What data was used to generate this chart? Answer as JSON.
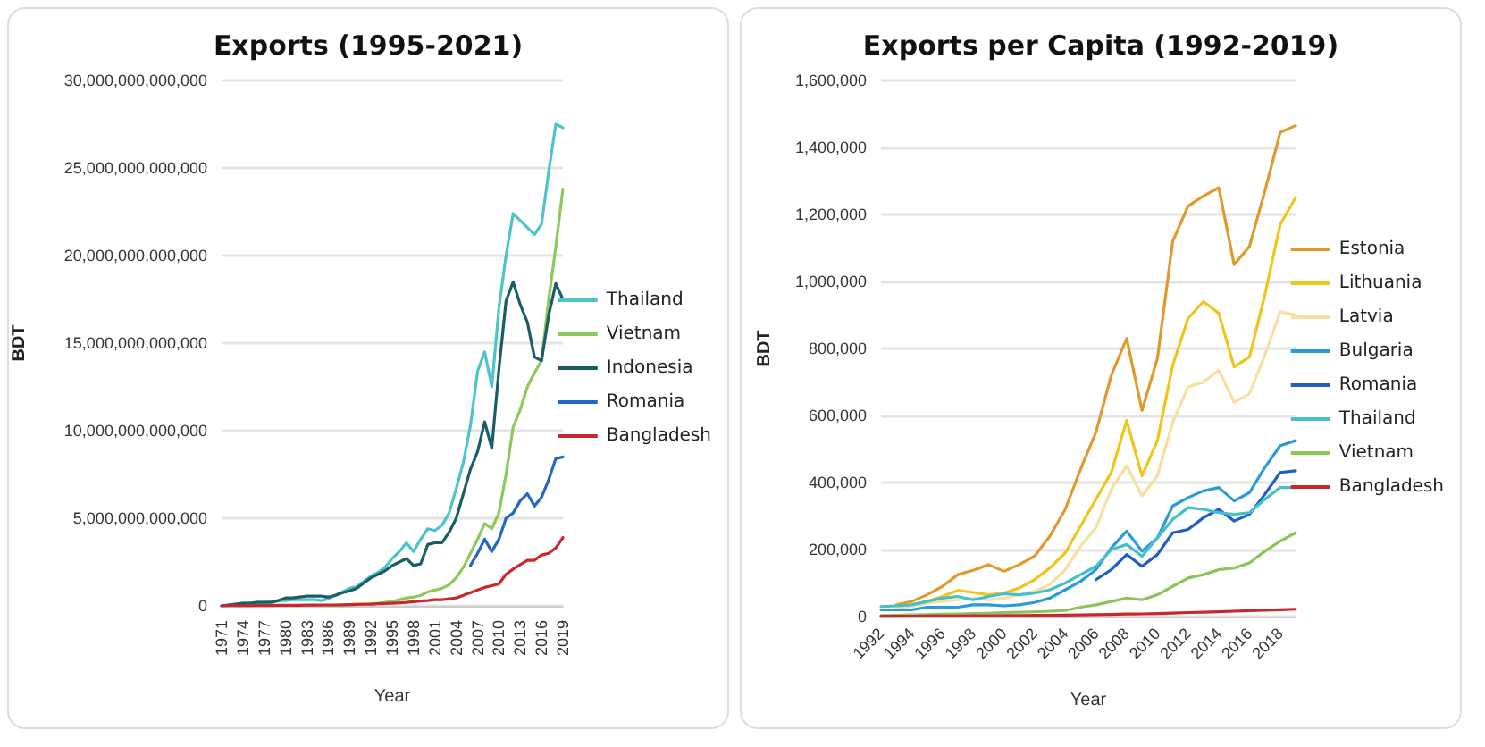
{
  "chart_data": [
    {
      "type": "line",
      "title": "Exports (1995-2021)",
      "xlabel": "Year",
      "ylabel": "BDT",
      "legend": "right",
      "grid": "y",
      "marker": "none",
      "line_style": "solid",
      "categories": [
        "1971",
        null,
        null,
        "1974",
        null,
        null,
        "1977",
        null,
        null,
        "1980",
        null,
        null,
        "1983",
        null,
        null,
        "1986",
        null,
        null,
        "1989",
        null,
        null,
        "1992",
        null,
        null,
        "1995",
        null,
        null,
        "1998",
        null,
        null,
        "2001",
        null,
        null,
        "2004",
        null,
        null,
        "2007",
        null,
        null,
        "2010",
        null,
        null,
        "2013",
        null,
        null,
        "2016",
        null,
        null,
        "2019"
      ],
      "ylim": [
        0,
        30000000000000.0
      ],
      "yticks": [
        {
          "value": 0,
          "label": "0"
        },
        {
          "value": 5000000000000.0,
          "label": "5,000,000,000,000"
        },
        {
          "value": 10000000000000.0,
          "label": "10,000,000,000,000"
        },
        {
          "value": 15000000000000.0,
          "label": "15,000,000,000,000"
        },
        {
          "value": 20000000000000.0,
          "label": "20,000,000,000,000"
        },
        {
          "value": 25000000000000.0,
          "label": "25,000,000,000,000"
        },
        {
          "value": 30000000000000.0,
          "label": "30,000,000,000,000"
        }
      ],
      "series": [
        {
          "name": "Thailand",
          "color": "#4cc4c8",
          "values": [
            0,
            50000000000.0,
            100000000000.0,
            150000000000.0,
            150000000000.0,
            200000000000.0,
            200000000000.0,
            250000000000.0,
            300000000000.0,
            300000000000.0,
            350000000000.0,
            350000000000.0,
            350000000000.0,
            350000000000.0,
            300000000000.0,
            400000000000.0,
            600000000000.0,
            800000000000.0,
            1000000000000.0,
            1100000000000.0,
            1400000000000.0,
            1700000000000.0,
            1900000000000.0,
            2200000000000.0,
            2700000000000.0,
            3100000000000.0,
            3600000000000.0,
            3100000000000.0,
            3800000000000.0,
            4400000000000.0,
            4300000000000.0,
            4600000000000.0,
            5300000000000.0,
            6700000000000.0,
            8200000000000.0,
            10300000000000.0,
            13400000000000.0,
            14500000000000.0,
            12500000000000.0,
            17000000000000.0,
            20000000000000.0,
            22400000000000.0,
            22000000000000.0,
            21600000000000.0,
            21200000000000.0,
            21800000000000.0,
            24800000000000.0,
            27500000000000.0,
            27300000000000.0
          ]
        },
        {
          "name": "Vietnam",
          "color": "#8fc85a",
          "values": [
            null,
            null,
            null,
            null,
            null,
            null,
            null,
            null,
            null,
            null,
            null,
            null,
            null,
            null,
            null,
            20000000000.0,
            30000000000.0,
            40000000000.0,
            60000000000.0,
            80000000000.0,
            100000000000.0,
            120000000000.0,
            150000000000.0,
            200000000000.0,
            250000000000.0,
            350000000000.0,
            450000000000.0,
            500000000000.0,
            600000000000.0,
            800000000000.0,
            900000000000.0,
            1000000000000.0,
            1200000000000.0,
            1600000000000.0,
            2200000000000.0,
            3000000000000.0,
            3800000000000.0,
            4700000000000.0,
            4400000000000.0,
            5300000000000.0,
            7500000000000.0,
            10200000000000.0,
            11200000000000.0,
            12500000000000.0,
            13300000000000.0,
            14000000000000.0,
            17500000000000.0,
            20500000000000.0,
            23800000000000.0
          ]
        },
        {
          "name": "Indonesia",
          "color": "#1a5e63",
          "values": [
            0,
            50000000000.0,
            100000000000.0,
            150000000000.0,
            150000000000.0,
            200000000000.0,
            200000000000.0,
            200000000000.0,
            300000000000.0,
            450000000000.0,
            450000000000.0,
            500000000000.0,
            550000000000.0,
            550000000000.0,
            550000000000.0,
            500000000000.0,
            600000000000.0,
            750000000000.0,
            850000000000.0,
            1000000000000.0,
            1300000000000.0,
            1600000000000.0,
            1800000000000.0,
            2000000000000.0,
            2300000000000.0,
            2500000000000.0,
            2700000000000.0,
            2300000000000.0,
            2400000000000.0,
            3500000000000.0,
            3600000000000.0,
            3600000000000.0,
            4200000000000.0,
            5000000000000.0,
            6400000000000.0,
            7800000000000.0,
            8800000000000.0,
            10500000000000.0,
            9000000000000.0,
            13500000000000.0,
            17400000000000.0,
            18500000000000.0,
            17200000000000.0,
            16200000000000.0,
            14200000000000.0,
            14000000000000.0,
            16600000000000.0,
            18400000000000.0,
            17500000000000.0
          ]
        },
        {
          "name": "Romania",
          "color": "#2166c8",
          "values": [
            null,
            null,
            null,
            null,
            null,
            null,
            null,
            null,
            null,
            null,
            null,
            null,
            null,
            null,
            null,
            null,
            null,
            null,
            null,
            null,
            null,
            null,
            null,
            null,
            null,
            null,
            null,
            null,
            null,
            null,
            null,
            null,
            null,
            null,
            null,
            2300000000000.0,
            3000000000000.0,
            3800000000000.0,
            3100000000000.0,
            3800000000000.0,
            5000000000000.0,
            5300000000000.0,
            6000000000000.0,
            6400000000000.0,
            5700000000000.0,
            6200000000000.0,
            7200000000000.0,
            8400000000000.0,
            8500000000000.0
          ]
        },
        {
          "name": "Bangladesh",
          "color": "#c8282d",
          "values": [
            0,
            10000000000.0,
            10000000000.0,
            10000000000.0,
            10000000000.0,
            20000000000.0,
            20000000000.0,
            20000000000.0,
            30000000000.0,
            30000000000.0,
            30000000000.0,
            30000000000.0,
            40000000000.0,
            40000000000.0,
            40000000000.0,
            50000000000.0,
            50000000000.0,
            60000000000.0,
            70000000000.0,
            80000000000.0,
            90000000000.0,
            100000000000.0,
            120000000000.0,
            130000000000.0,
            150000000000.0,
            170000000000.0,
            200000000000.0,
            240000000000.0,
            270000000000.0,
            300000000000.0,
            350000000000.0,
            350000000000.0,
            400000000000.0,
            450000000000.0,
            600000000000.0,
            750000000000.0,
            900000000000.0,
            1050000000000.0,
            1150000000000.0,
            1250000000000.0,
            1800000000000.0,
            2100000000000.0,
            2350000000000.0,
            2600000000000.0,
            2600000000000.0,
            2900000000000.0,
            3000000000000.0,
            3300000000000.0,
            3900000000000.0
          ]
        }
      ]
    },
    {
      "type": "line",
      "title": "Exports per Capita (1992-2019)",
      "xlabel": "Year",
      "ylabel": "BDT",
      "legend": "right",
      "grid": "y",
      "marker": "none",
      "line_style": "solid",
      "categories": [
        "1992",
        null,
        "1994",
        null,
        "1996",
        null,
        "1998",
        null,
        "2000",
        null,
        "2002",
        null,
        "2004",
        null,
        "2006",
        null,
        "2008",
        null,
        "2010",
        null,
        "2012",
        null,
        "2014",
        null,
        "2016",
        null,
        "2018",
        null
      ],
      "ylim": [
        0,
        1600000
      ],
      "yticks": [
        {
          "value": 0,
          "label": "0"
        },
        {
          "value": 200000,
          "label": "200,000"
        },
        {
          "value": 400000,
          "label": "400,000"
        },
        {
          "value": 600000,
          "label": "600,000"
        },
        {
          "value": 800000,
          "label": "800,000"
        },
        {
          "value": 1000000,
          "label": "1,000,000"
        },
        {
          "value": 1200000,
          "label": "1,200,000"
        },
        {
          "value": 1400000,
          "label": "1,400,000"
        },
        {
          "value": 1600000,
          "label": "1,600,000"
        }
      ],
      "series": [
        {
          "name": "Estonia",
          "color": "#e09a2c",
          "values": [
            null,
            35000,
            45000,
            65000,
            90000,
            125000,
            138000,
            155000,
            135000,
            155000,
            180000,
            240000,
            320000,
            440000,
            550000,
            720000,
            830000,
            615000,
            770000,
            1120000,
            1225000,
            1255000,
            1280000,
            1050000,
            1105000,
            1270000,
            1445000,
            1465000
          ]
        },
        {
          "name": "Lithuania",
          "color": "#f0c419",
          "values": [
            null,
            30000,
            35000,
            45000,
            60000,
            78000,
            72000,
            65000,
            70000,
            85000,
            110000,
            145000,
            190000,
            270000,
            350000,
            430000,
            585000,
            420000,
            525000,
            750000,
            890000,
            940000,
            905000,
            745000,
            775000,
            960000,
            1170000,
            1250000
          ]
        },
        {
          "name": "Latvia",
          "color": "#f6dfa0",
          "values": [
            null,
            25000,
            30000,
            40000,
            45000,
            50000,
            55000,
            50000,
            55000,
            65000,
            75000,
            95000,
            140000,
            210000,
            265000,
            380000,
            450000,
            360000,
            420000,
            580000,
            685000,
            700000,
            735000,
            640000,
            665000,
            780000,
            910000,
            900000
          ]
        },
        {
          "name": "Bulgaria",
          "color": "#2a9ad8",
          "values": [
            20000,
            20000,
            20000,
            28000,
            28000,
            28000,
            35000,
            35000,
            32000,
            35000,
            42000,
            55000,
            80000,
            105000,
            140000,
            205000,
            255000,
            195000,
            235000,
            330000,
            355000,
            375000,
            385000,
            345000,
            370000,
            445000,
            510000,
            525000
          ]
        },
        {
          "name": "Romania",
          "color": "#1f5fc4",
          "values": [
            null,
            null,
            null,
            null,
            null,
            null,
            null,
            null,
            null,
            null,
            null,
            null,
            null,
            null,
            110000,
            140000,
            185000,
            150000,
            185000,
            250000,
            260000,
            295000,
            320000,
            285000,
            305000,
            365000,
            430000,
            435000
          ]
        },
        {
          "name": "Thailand",
          "color": "#45c0c8",
          "values": [
            30000,
            32000,
            35000,
            45000,
            55000,
            60000,
            50000,
            60000,
            68000,
            65000,
            70000,
            80000,
            100000,
            125000,
            150000,
            200000,
            215000,
            180000,
            235000,
            290000,
            325000,
            320000,
            310000,
            305000,
            310000,
            350000,
            385000,
            385000
          ]
        },
        {
          "name": "Vietnam",
          "color": "#8cc45a",
          "values": [
            3000,
            4000,
            5000,
            6000,
            7000,
            8000,
            9000,
            10000,
            12000,
            13000,
            14000,
            16000,
            18000,
            28000,
            35000,
            45000,
            55000,
            50000,
            65000,
            90000,
            115000,
            125000,
            140000,
            145000,
            160000,
            195000,
            225000,
            250000
          ]
        },
        {
          "name": "Bangladesh",
          "color": "#c8282d",
          "values": [
            1000,
            1100,
            1300,
            1500,
            1700,
            2000,
            2300,
            2600,
            3000,
            3300,
            3600,
            4000,
            4500,
            5000,
            5800,
            6500,
            7500,
            8000,
            9000,
            10500,
            12000,
            13000,
            14500,
            16000,
            17500,
            19000,
            20500,
            22000
          ]
        }
      ]
    }
  ]
}
